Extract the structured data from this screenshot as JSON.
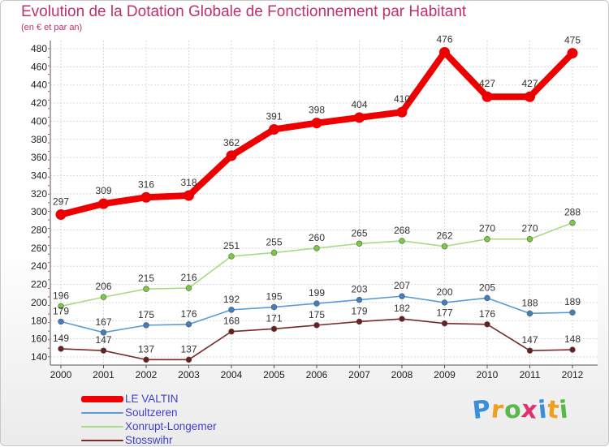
{
  "chart_data": {
    "type": "line",
    "title": "Evolution de la Dotation Globale de Fonctionnement par Habitant",
    "subtitle": "(en € et par an)",
    "xlabel": "",
    "ylabel": "",
    "ylim": [
      140,
      480
    ],
    "yticks": [
      "140",
      "160",
      "180",
      "200",
      "220",
      "240",
      "260",
      "280",
      "300",
      "320",
      "340",
      "360",
      "380",
      "400",
      "420",
      "440",
      "460",
      "480"
    ],
    "x": [
      "2000",
      "2001",
      "2002",
      "2003",
      "2004",
      "2005",
      "2006",
      "2007",
      "2008",
      "2009",
      "2010",
      "2011",
      "2012"
    ],
    "grid": true,
    "legend_position": "bottom-left",
    "series": [
      {
        "name": "LE VALTIN",
        "color": "#ee0000",
        "values": [
          297,
          309,
          316,
          318,
          362,
          391,
          398,
          404,
          410,
          476,
          427,
          427,
          475
        ],
        "labels": [
          "297",
          "309",
          "316",
          "318",
          "362",
          "391",
          "398",
          "404",
          "410",
          "476",
          "427",
          "427",
          "475"
        ]
      },
      {
        "name": "Soultzeren",
        "color": "#5b9bd5",
        "marker": "#3f7fc0",
        "values": [
          179,
          167,
          175,
          176,
          192,
          195,
          199,
          203,
          207,
          200,
          205,
          188,
          189
        ],
        "labels": [
          "179",
          "167",
          "175",
          "176",
          "192",
          "195",
          "199",
          "203",
          "207",
          "200",
          "205",
          "188",
          "189"
        ]
      },
      {
        "name": "Xonrupt-Longemer",
        "color": "#a6dc84",
        "marker": "#7acc3c",
        "values": [
          196,
          206,
          215,
          216,
          251,
          255,
          260,
          265,
          268,
          262,
          270,
          270,
          288
        ],
        "labels": [
          "196",
          "206",
          "215",
          "216",
          "251",
          "255",
          "260",
          "265",
          "268",
          "262",
          "270",
          "270",
          "288"
        ]
      },
      {
        "name": "Stosswihr",
        "color": "#7a2a2a",
        "marker": "#6a1f1f",
        "values": [
          149,
          147,
          137,
          137,
          168,
          171,
          175,
          179,
          182,
          177,
          176,
          147,
          148
        ],
        "labels": [
          "149",
          "147",
          "137",
          "137",
          "168",
          "171",
          "175",
          "179",
          "182",
          "177",
          "176",
          "147",
          "148"
        ]
      }
    ]
  },
  "logo": {
    "letters": [
      "P",
      "r",
      "o",
      "x",
      "i",
      "t",
      "i"
    ],
    "colors": [
      "#3a8fd8",
      "#f0a020",
      "#58b848",
      "#e03070",
      "#3a8fd8",
      "#f0a020",
      "#58b848"
    ]
  }
}
